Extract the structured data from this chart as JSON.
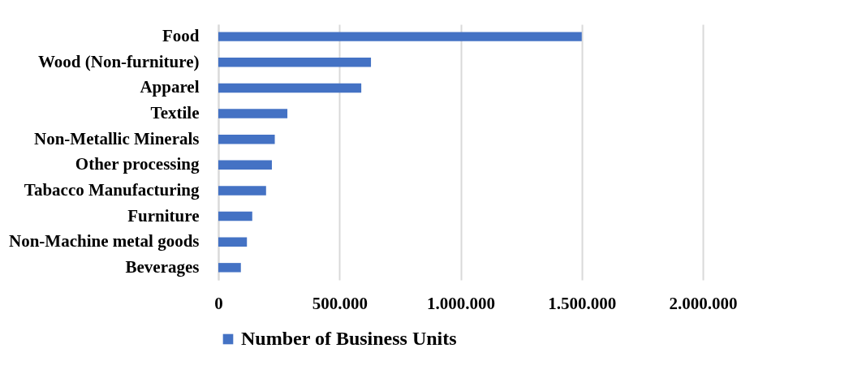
{
  "chart_data": {
    "type": "bar",
    "orientation": "horizontal",
    "categories": [
      "Food",
      "Wood (Non-furniture)",
      "Apparel",
      "Textile",
      "Non-Metallic Minerals",
      "Other processing",
      "Tabacco Manufacturing",
      "Furniture",
      "Non-Machine metal goods",
      "Beverages"
    ],
    "series": [
      {
        "name": "Number of Business Units",
        "color": "#4472c4",
        "values": [
          1500000,
          630000,
          590000,
          285000,
          233000,
          221000,
          197000,
          140000,
          118000,
          93000
        ]
      }
    ],
    "xlim": [
      0,
      2000000
    ],
    "xticks": [
      0,
      {
        "value": 500000,
        "label": "500.000"
      },
      {
        "value": 1000000,
        "label": "1.000.000"
      },
      {
        "value": 1500000,
        "label": "1.500.000"
      },
      {
        "value": 2000000,
        "label": "2.000.000"
      }
    ],
    "grid": "x",
    "legend": "bottom"
  }
}
